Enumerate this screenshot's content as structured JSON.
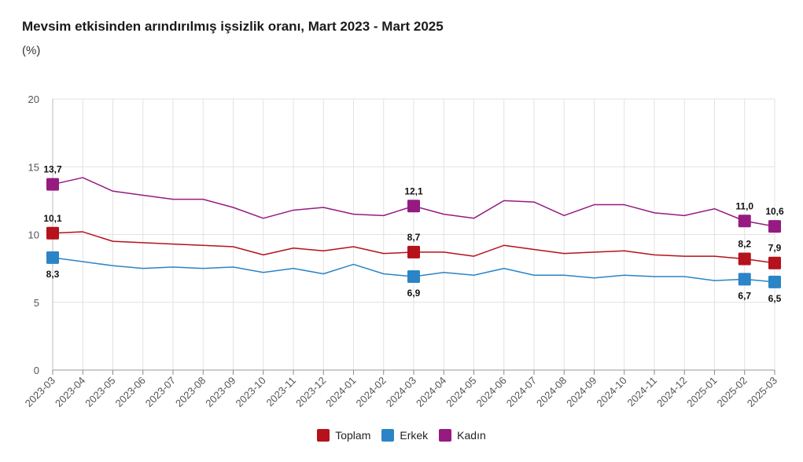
{
  "chart_data": {
    "type": "line",
    "title": "Mevsim etkisinden arındırılmış işsizlik oranı, Mart 2023 - Mart 2025",
    "unit": "(%)",
    "x": [
      "2023-03",
      "2023-04",
      "2023-05",
      "2023-06",
      "2023-07",
      "2023-08",
      "2023-09",
      "2023-10",
      "2023-11",
      "2023-12",
      "2024-01",
      "2024-02",
      "2024-03",
      "2024-04",
      "2024-05",
      "2024-06",
      "2024-07",
      "2024-08",
      "2024-09",
      "2024-10",
      "2024-11",
      "2024-12",
      "2025-01",
      "2025-02",
      "2025-03"
    ],
    "ylim": [
      0,
      20
    ],
    "yticks": [
      "0",
      "5",
      "10",
      "15",
      "20"
    ],
    "grid": true,
    "legend_position": "bottom",
    "series": [
      {
        "name": "Toplam",
        "color": "#b5121b",
        "values": [
          10.1,
          10.2,
          9.5,
          9.4,
          9.3,
          9.2,
          9.1,
          8.5,
          9.0,
          8.8,
          9.1,
          8.6,
          8.7,
          8.7,
          8.4,
          9.2,
          8.9,
          8.6,
          8.7,
          8.8,
          8.5,
          8.4,
          8.4,
          8.2,
          7.9
        ]
      },
      {
        "name": "Erkek",
        "color": "#2b84c6",
        "values": [
          8.3,
          8.0,
          7.7,
          7.5,
          7.6,
          7.5,
          7.6,
          7.2,
          7.5,
          7.1,
          7.8,
          7.1,
          6.9,
          7.2,
          7.0,
          7.5,
          7.0,
          7.0,
          6.8,
          7.0,
          6.9,
          6.9,
          6.6,
          6.7,
          6.5
        ]
      },
      {
        "name": "Kadın",
        "color": "#951b81",
        "values": [
          13.7,
          14.2,
          13.2,
          12.9,
          12.6,
          12.6,
          12.0,
          11.2,
          11.8,
          12.0,
          11.5,
          11.4,
          12.1,
          11.5,
          11.2,
          12.5,
          12.4,
          11.4,
          12.2,
          12.2,
          11.6,
          11.4,
          11.9,
          11.0,
          10.6
        ]
      }
    ],
    "annotations": [
      {
        "series": 0,
        "index": 0,
        "label": "10,1",
        "side": "above"
      },
      {
        "series": 1,
        "index": 0,
        "label": "8,3",
        "side": "below"
      },
      {
        "series": 2,
        "index": 0,
        "label": "13,7",
        "side": "above"
      },
      {
        "series": 0,
        "index": 12,
        "label": "8,7",
        "side": "above"
      },
      {
        "series": 1,
        "index": 12,
        "label": "6,9",
        "side": "below"
      },
      {
        "series": 2,
        "index": 12,
        "label": "12,1",
        "side": "above"
      },
      {
        "series": 0,
        "index": 23,
        "label": "8,2",
        "side": "above"
      },
      {
        "series": 1,
        "index": 23,
        "label": "6,7",
        "side": "below"
      },
      {
        "series": 2,
        "index": 23,
        "label": "11,0",
        "side": "above"
      },
      {
        "series": 0,
        "index": 24,
        "label": "7,9",
        "side": "above"
      },
      {
        "series": 1,
        "index": 24,
        "label": "6,5",
        "side": "below"
      },
      {
        "series": 2,
        "index": 24,
        "label": "10,6",
        "side": "above"
      }
    ]
  }
}
